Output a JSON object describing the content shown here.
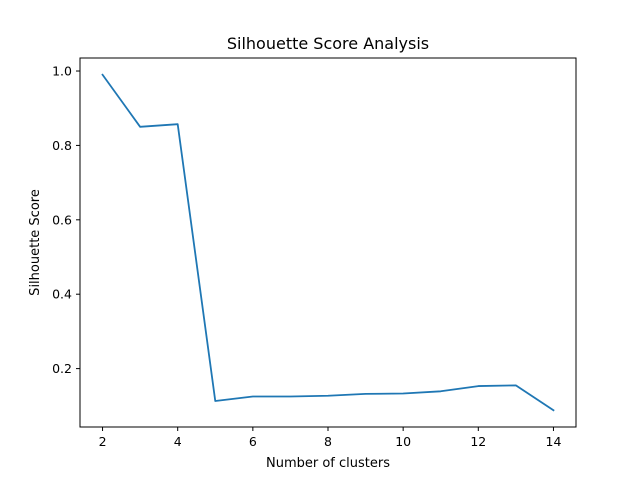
{
  "chart_data": {
    "type": "line",
    "title": "Silhouette Score Analysis",
    "xlabel": "Number of clusters",
    "ylabel": "Silhouette Score",
    "x": [
      2,
      3,
      4,
      5,
      6,
      7,
      8,
      9,
      10,
      11,
      12,
      13,
      14
    ],
    "series": [
      {
        "values": [
          0.99,
          0.85,
          0.857,
          0.113,
          0.125,
          0.125,
          0.127,
          0.132,
          0.133,
          0.139,
          0.153,
          0.155,
          0.088
        ],
        "color": "#1f77b4"
      }
    ],
    "xlim": [
      1.4,
      14.6
    ],
    "ylim": [
      0.043,
      1.035
    ],
    "xticks": [
      2,
      4,
      6,
      8,
      10,
      12,
      14
    ],
    "xtick_labels": [
      "2",
      "4",
      "6",
      "8",
      "10",
      "12",
      "14"
    ],
    "yticks": [
      0.2,
      0.4,
      0.6,
      0.8,
      1.0
    ],
    "ytick_labels": [
      "0.2",
      "0.4",
      "0.6",
      "0.8",
      "1.0"
    ],
    "grid": false,
    "legend": false
  }
}
